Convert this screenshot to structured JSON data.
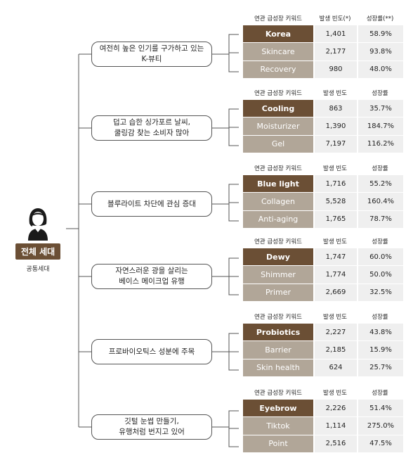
{
  "persona": {
    "icon": "person-icon",
    "label": "전체 세대",
    "sublabel": "공통세대"
  },
  "groups": [
    {
      "topic": "여전히 높은 인기를 구가하고 있는\nK-뷰티",
      "headers": [
        "연관 급성장 키워드",
        "발생 빈도(*)",
        "성장률(**)"
      ],
      "rows": [
        {
          "keyword": "Korea",
          "frequency": "1,401",
          "growth": "58.9%"
        },
        {
          "keyword": "Skincare",
          "frequency": "2,177",
          "growth": "93.8%"
        },
        {
          "keyword": "Recovery",
          "frequency": "980",
          "growth": "48.0%"
        }
      ]
    },
    {
      "topic": "덥고 습한 싱가포르 날씨,\n쿨링감 찾는 소비자 많아",
      "headers": [
        "연관 급성장 키워드",
        "발생 빈도",
        "성장률"
      ],
      "rows": [
        {
          "keyword": "Cooling",
          "frequency": "863",
          "growth": "35.7%"
        },
        {
          "keyword": "Moisturizer",
          "frequency": "1,390",
          "growth": "184.7%"
        },
        {
          "keyword": "Gel",
          "frequency": "7,197",
          "growth": "116.2%"
        }
      ]
    },
    {
      "topic": "블루라이트 차단에 관심 증대",
      "headers": [
        "연관 급성장 키워드",
        "발생 빈도",
        "성장률"
      ],
      "rows": [
        {
          "keyword": "Blue light",
          "frequency": "1,716",
          "growth": "55.2%"
        },
        {
          "keyword": "Collagen",
          "frequency": "5,528",
          "growth": "160.4%"
        },
        {
          "keyword": "Anti-aging",
          "frequency": "1,765",
          "growth": "78.7%"
        }
      ]
    },
    {
      "topic": "자연스러운 광을 살리는\n베이스 메이크업 유행",
      "headers": [
        "연관 급성장 키워드",
        "발생 빈도",
        "성장률"
      ],
      "rows": [
        {
          "keyword": "Dewy",
          "frequency": "1,747",
          "growth": "60.0%"
        },
        {
          "keyword": "Shimmer",
          "frequency": "1,774",
          "growth": "50.0%"
        },
        {
          "keyword": "Primer",
          "frequency": "2,669",
          "growth": "32.5%"
        }
      ]
    },
    {
      "topic": "프로바이오틱스 성분에 주목",
      "headers": [
        "연관 급성장 키워드",
        "발생 빈도",
        "성장률"
      ],
      "rows": [
        {
          "keyword": "Probiotics",
          "frequency": "2,227",
          "growth": "43.8%"
        },
        {
          "keyword": "Barrier",
          "frequency": "2,185",
          "growth": "15.9%"
        },
        {
          "keyword": "Skin health",
          "frequency": "624",
          "growth": "25.7%"
        }
      ]
    },
    {
      "topic": "깃털 눈썹 만들기,\n유행처럼 번지고 있어",
      "headers": [
        "연관 급성장 키워드",
        "발생 빈도",
        "성장률"
      ],
      "rows": [
        {
          "keyword": "Eyebrow",
          "frequency": "2,226",
          "growth": "51.4%"
        },
        {
          "keyword": "Tiktok",
          "frequency": "1,114",
          "growth": "275.0%"
        },
        {
          "keyword": "Point",
          "frequency": "2,516",
          "growth": "47.5%"
        }
      ]
    }
  ],
  "colors": {
    "accent_brown": "#6b4f35",
    "keyword_taupe": "#b1a698",
    "cell_grey": "#efefef",
    "line": "#555555"
  }
}
